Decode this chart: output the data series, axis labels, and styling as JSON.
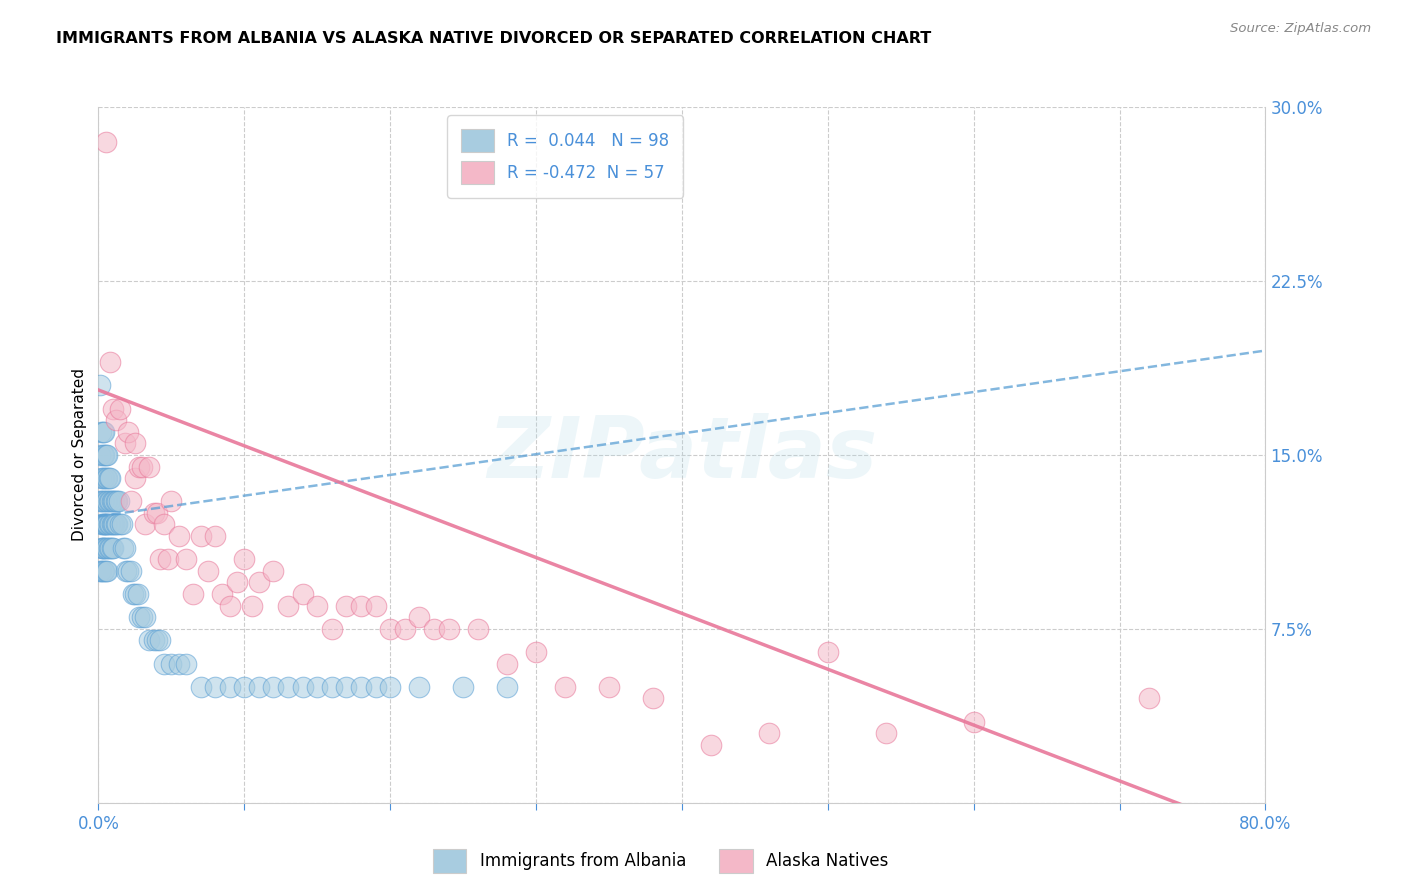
{
  "title": "IMMIGRANTS FROM ALBANIA VS ALASKA NATIVE DIVORCED OR SEPARATED CORRELATION CHART",
  "source": "Source: ZipAtlas.com",
  "ylabel": "Divorced or Separated",
  "legend_label1": "Immigrants from Albania",
  "legend_label2": "Alaska Natives",
  "r1": 0.044,
  "n1": 98,
  "r2": -0.472,
  "n2": 57,
  "color_blue": "#a8cce0",
  "color_pink": "#f4b8c8",
  "color_blue_dark": "#5a9fd4",
  "color_pink_dark": "#e8789a",
  "color_text_blue": "#4a90d9",
  "watermark": "ZIPatlas",
  "y_ticks_right": [
    0.0,
    0.075,
    0.15,
    0.225,
    0.3
  ],
  "y_tick_labels_right": [
    "",
    "7.5%",
    "15.0%",
    "22.5%",
    "30.0%"
  ],
  "blue_scatter_x": [
    0.001,
    0.001,
    0.001,
    0.001,
    0.002,
    0.002,
    0.002,
    0.002,
    0.002,
    0.002,
    0.003,
    0.003,
    0.003,
    0.003,
    0.003,
    0.003,
    0.003,
    0.003,
    0.004,
    0.004,
    0.004,
    0.004,
    0.004,
    0.004,
    0.004,
    0.004,
    0.005,
    0.005,
    0.005,
    0.005,
    0.005,
    0.005,
    0.005,
    0.006,
    0.006,
    0.006,
    0.006,
    0.006,
    0.006,
    0.007,
    0.007,
    0.007,
    0.007,
    0.008,
    0.008,
    0.008,
    0.008,
    0.009,
    0.009,
    0.009,
    0.01,
    0.01,
    0.01,
    0.011,
    0.011,
    0.012,
    0.012,
    0.013,
    0.013,
    0.014,
    0.015,
    0.016,
    0.017,
    0.018,
    0.019,
    0.02,
    0.022,
    0.024,
    0.025,
    0.027,
    0.028,
    0.03,
    0.032,
    0.035,
    0.038,
    0.04,
    0.042,
    0.045,
    0.05,
    0.055,
    0.06,
    0.07,
    0.08,
    0.09,
    0.1,
    0.11,
    0.12,
    0.13,
    0.14,
    0.15,
    0.16,
    0.17,
    0.18,
    0.19,
    0.2,
    0.22,
    0.25,
    0.28
  ],
  "blue_scatter_y": [
    0.18,
    0.15,
    0.13,
    0.1,
    0.16,
    0.14,
    0.13,
    0.12,
    0.11,
    0.1,
    0.16,
    0.15,
    0.14,
    0.13,
    0.12,
    0.11,
    0.11,
    0.1,
    0.16,
    0.15,
    0.14,
    0.13,
    0.12,
    0.12,
    0.11,
    0.1,
    0.15,
    0.14,
    0.13,
    0.12,
    0.12,
    0.11,
    0.1,
    0.15,
    0.14,
    0.13,
    0.12,
    0.11,
    0.1,
    0.14,
    0.13,
    0.12,
    0.11,
    0.14,
    0.13,
    0.12,
    0.11,
    0.13,
    0.12,
    0.11,
    0.13,
    0.12,
    0.11,
    0.13,
    0.12,
    0.13,
    0.12,
    0.13,
    0.12,
    0.13,
    0.12,
    0.12,
    0.11,
    0.11,
    0.1,
    0.1,
    0.1,
    0.09,
    0.09,
    0.09,
    0.08,
    0.08,
    0.08,
    0.07,
    0.07,
    0.07,
    0.07,
    0.06,
    0.06,
    0.06,
    0.06,
    0.05,
    0.05,
    0.05,
    0.05,
    0.05,
    0.05,
    0.05,
    0.05,
    0.05,
    0.05,
    0.05,
    0.05,
    0.05,
    0.05,
    0.05,
    0.05,
    0.05
  ],
  "pink_scatter_x": [
    0.005,
    0.008,
    0.01,
    0.012,
    0.015,
    0.018,
    0.02,
    0.022,
    0.025,
    0.025,
    0.028,
    0.03,
    0.032,
    0.035,
    0.038,
    0.04,
    0.042,
    0.045,
    0.048,
    0.05,
    0.055,
    0.06,
    0.065,
    0.07,
    0.075,
    0.08,
    0.085,
    0.09,
    0.095,
    0.1,
    0.105,
    0.11,
    0.12,
    0.13,
    0.14,
    0.15,
    0.16,
    0.17,
    0.18,
    0.19,
    0.2,
    0.21,
    0.22,
    0.23,
    0.24,
    0.26,
    0.28,
    0.3,
    0.32,
    0.35,
    0.38,
    0.42,
    0.46,
    0.5,
    0.54,
    0.6,
    0.72
  ],
  "pink_scatter_y": [
    0.285,
    0.19,
    0.17,
    0.165,
    0.17,
    0.155,
    0.16,
    0.13,
    0.155,
    0.14,
    0.145,
    0.145,
    0.12,
    0.145,
    0.125,
    0.125,
    0.105,
    0.12,
    0.105,
    0.13,
    0.115,
    0.105,
    0.09,
    0.115,
    0.1,
    0.115,
    0.09,
    0.085,
    0.095,
    0.105,
    0.085,
    0.095,
    0.1,
    0.085,
    0.09,
    0.085,
    0.075,
    0.085,
    0.085,
    0.085,
    0.075,
    0.075,
    0.08,
    0.075,
    0.075,
    0.075,
    0.06,
    0.065,
    0.05,
    0.05,
    0.045,
    0.025,
    0.03,
    0.065,
    0.03,
    0.035,
    0.045
  ],
  "blue_trendline_x": [
    0.0,
    0.8
  ],
  "blue_trendline_y": [
    0.1235,
    0.195
  ],
  "pink_trendline_x": [
    0.0,
    0.76
  ],
  "pink_trendline_y": [
    0.178,
    -0.005
  ],
  "xlim": [
    0.0,
    0.8
  ],
  "ylim": [
    0.0,
    0.3
  ],
  "x_tick_positions": [
    0.0,
    0.1,
    0.2,
    0.3,
    0.4,
    0.5,
    0.6,
    0.7,
    0.8
  ],
  "x_tick_labels": [
    "0.0%",
    "",
    "",
    "",
    "",
    "",
    "",
    "",
    "80.0%"
  ]
}
